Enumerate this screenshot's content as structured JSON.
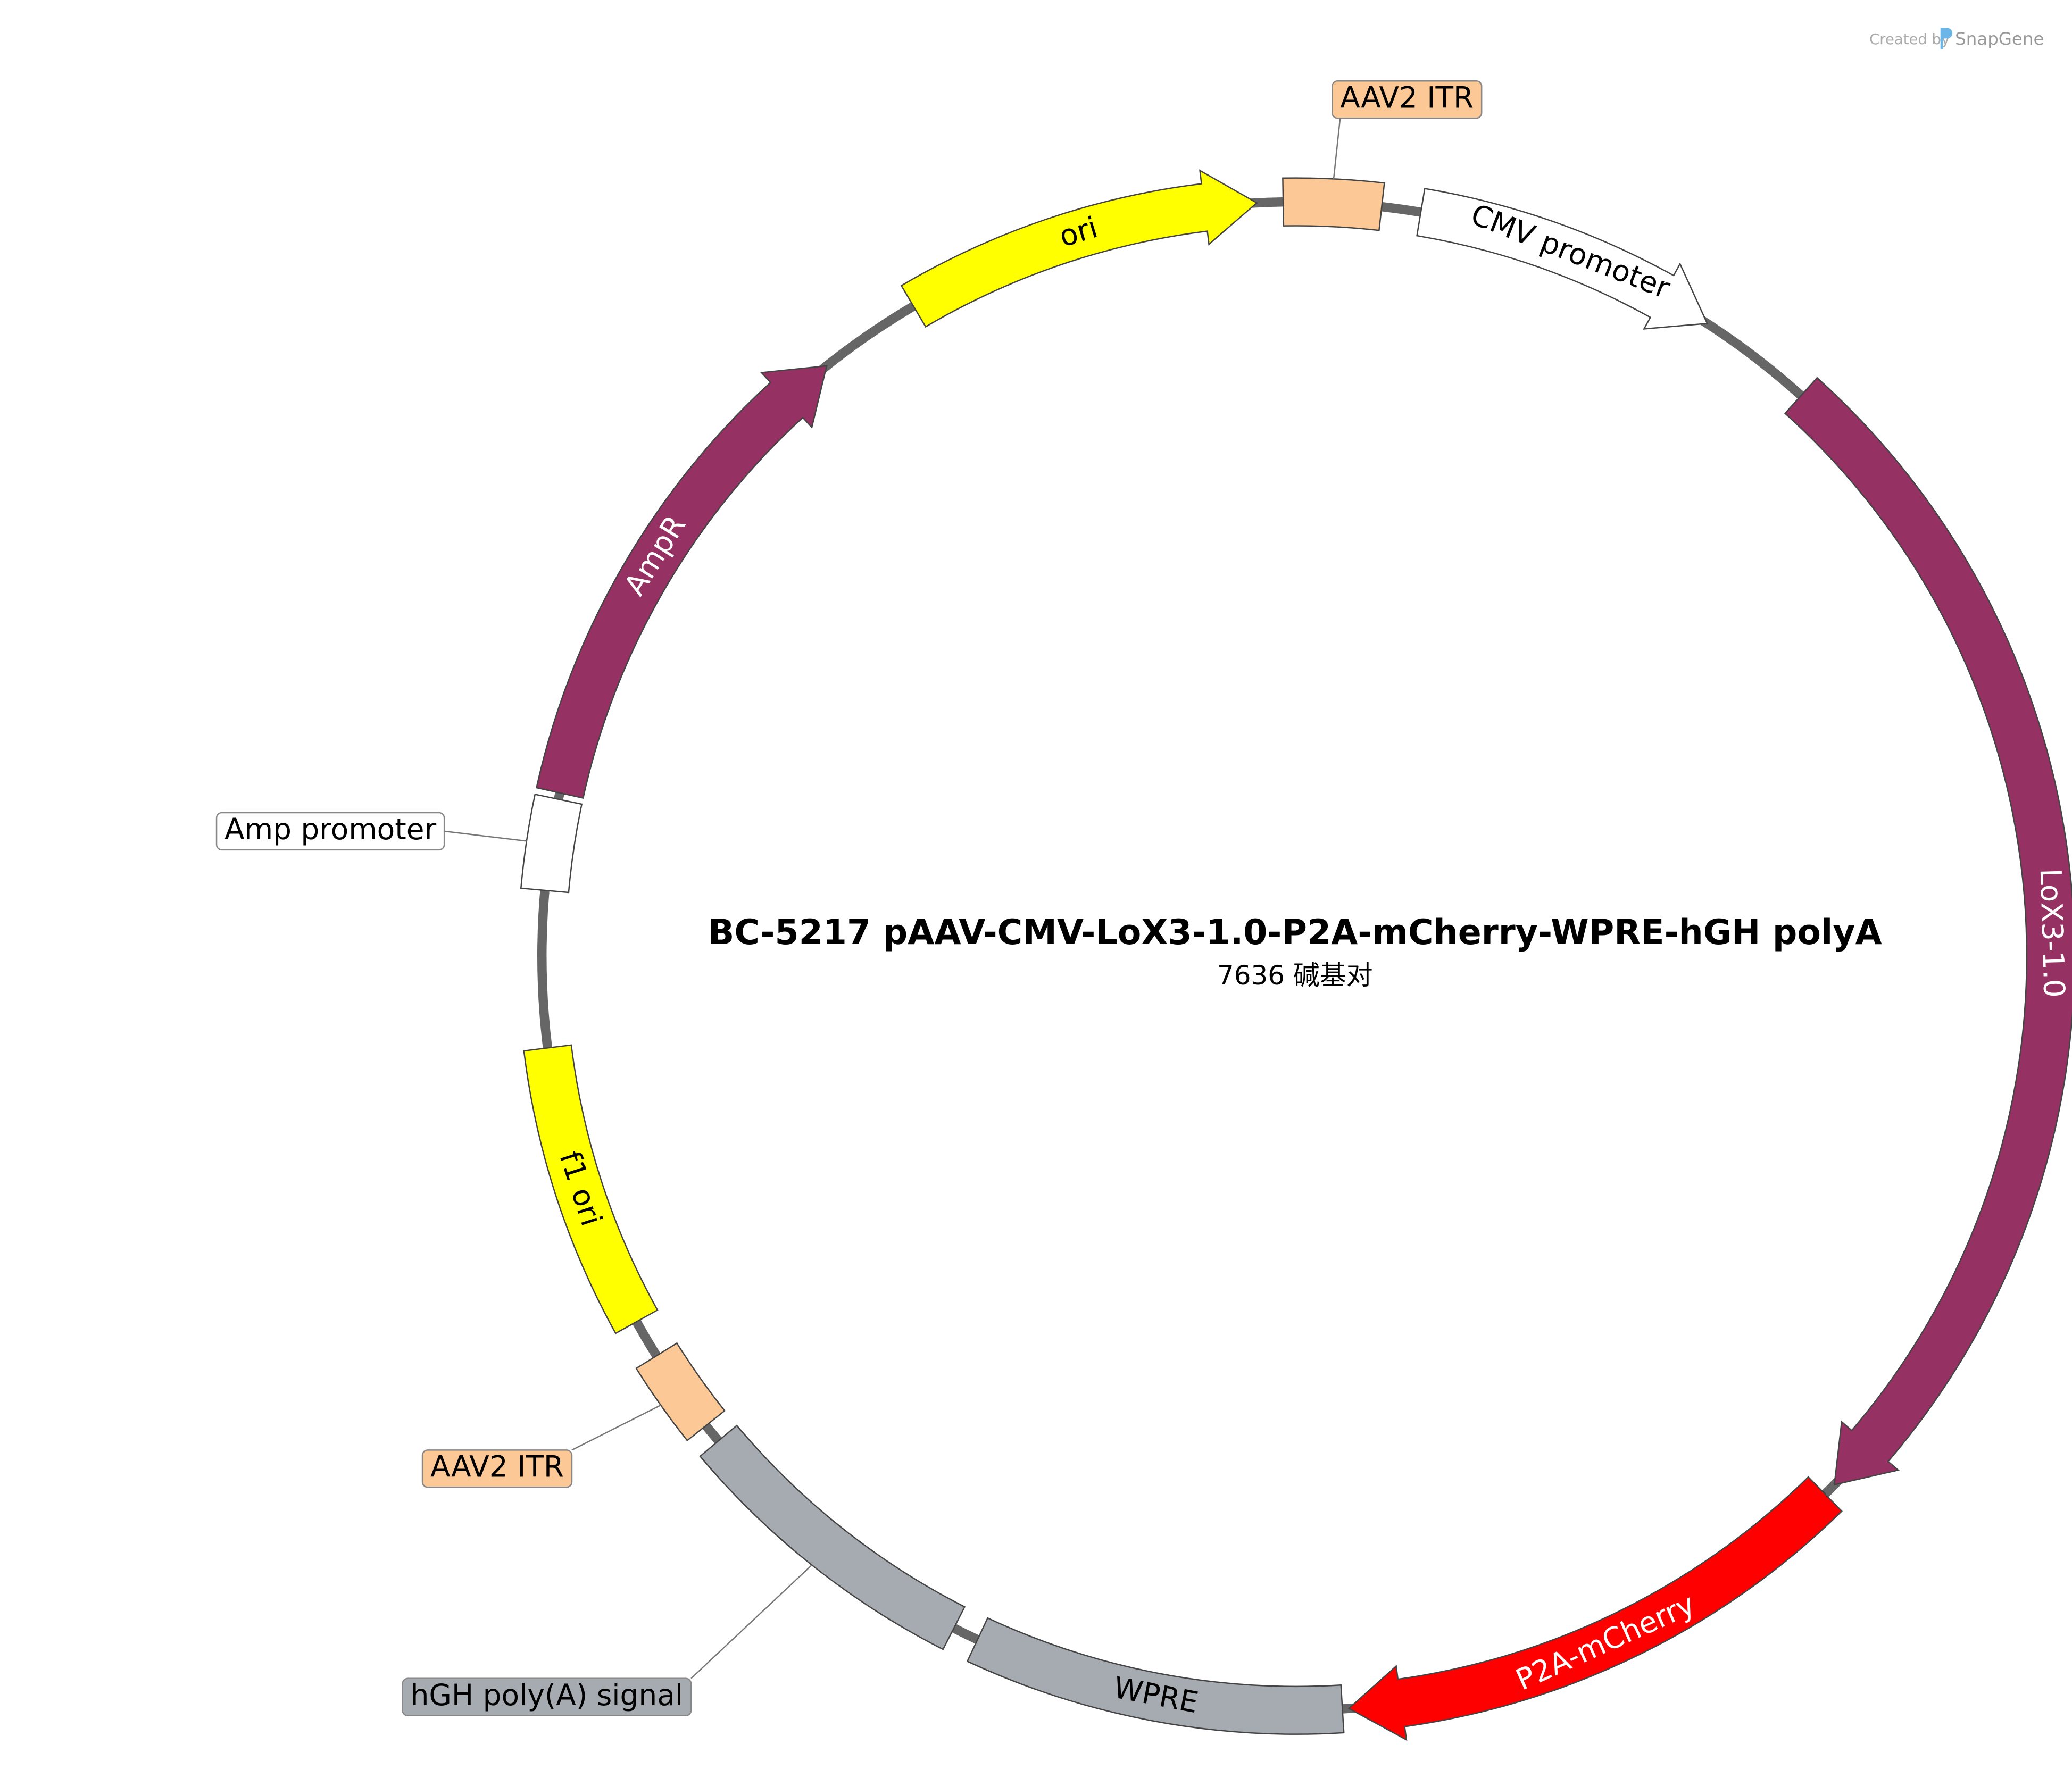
{
  "title": "BC-5217 pAAV-CMV-LoX3-1.0-P2A-mCherry-WPRE-hGH polyA",
  "size": "7636 碱基对",
  "credit": {
    "created_by": "Created by",
    "brand": "SnapGene"
  },
  "features": [
    {
      "label": "AAV2 ITR"
    },
    {
      "label": "CMV promoter"
    },
    {
      "label": "LoX3-1.0"
    },
    {
      "label": "P2A-mCherry"
    },
    {
      "label": "WPRE"
    },
    {
      "label": "hGH poly(A) signal"
    },
    {
      "label": "AAV2 ITR"
    },
    {
      "label": "f1 ori"
    },
    {
      "label": "Amp promoter"
    },
    {
      "label": "AmpR"
    },
    {
      "label": "ori"
    }
  ]
}
